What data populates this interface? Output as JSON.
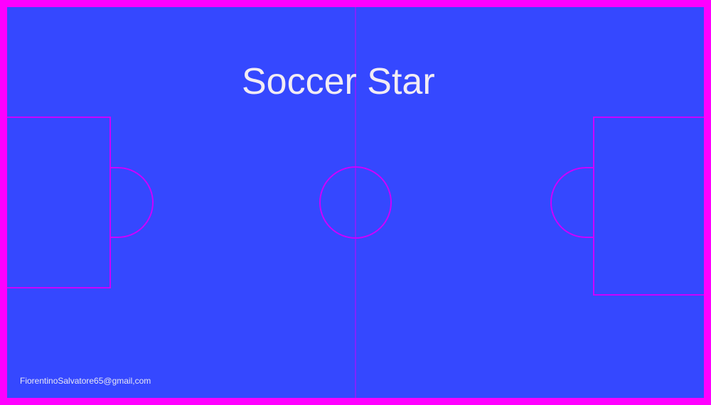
{
  "screen": {
    "title": "Soccer Star",
    "credit": "FiorentinoSalvatore65@gmail,com"
  },
  "colors": {
    "pitch": "#3548ff",
    "border": "#ff00ff",
    "lines": "#cc00ff",
    "text": "#f2ecf4"
  }
}
